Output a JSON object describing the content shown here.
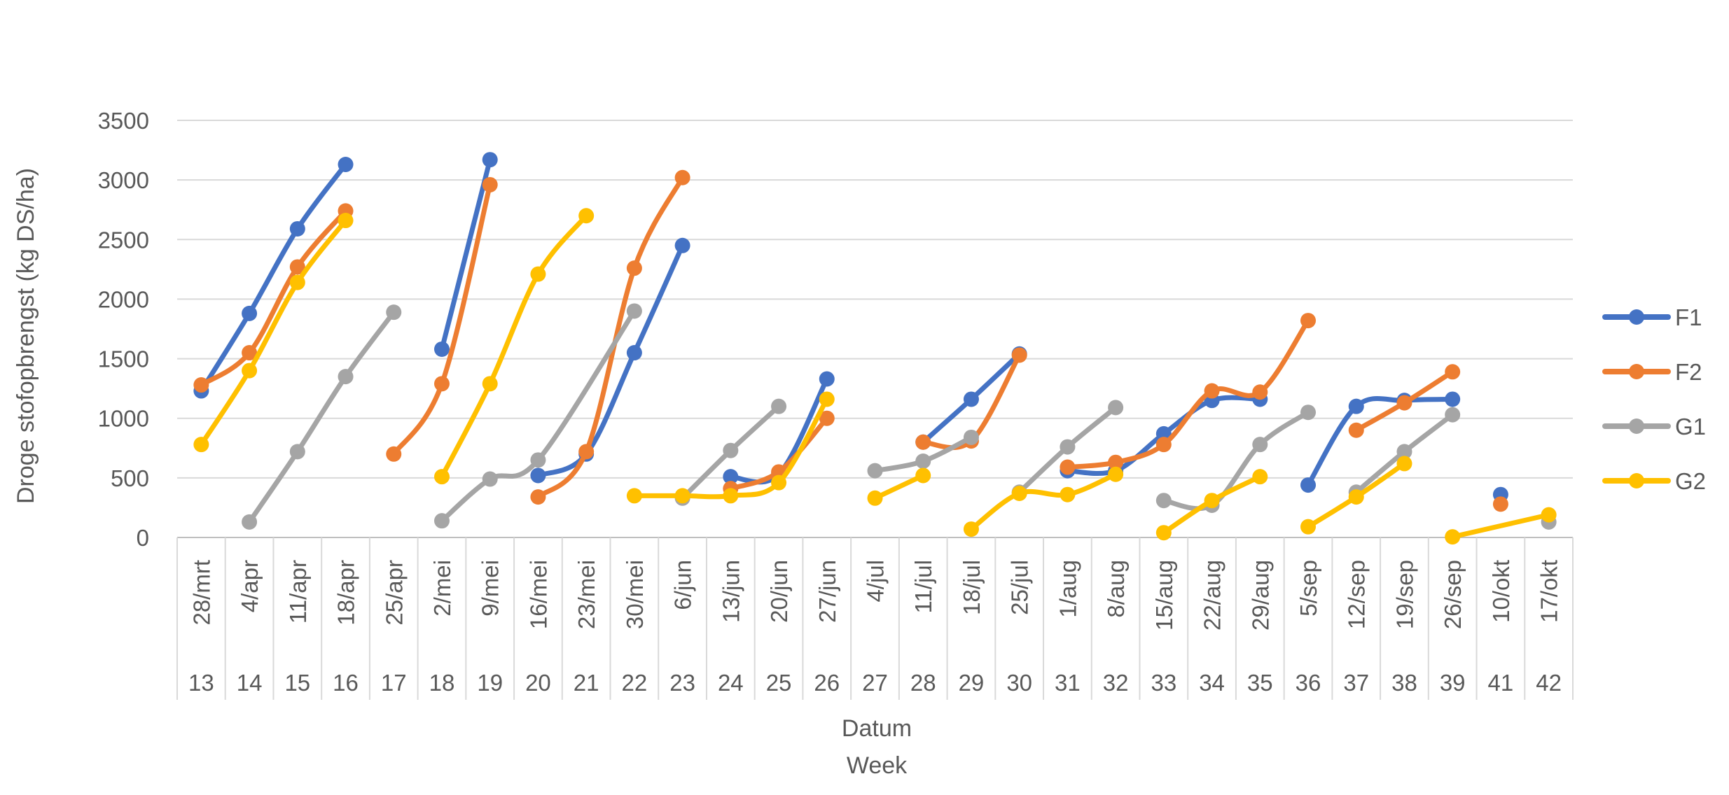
{
  "chart_data": {
    "type": "line",
    "title": "",
    "ylabel": "Droge stofopbrengst (kg DS/ha)",
    "xlabel": "Datum",
    "xlabel2": "Week",
    "ylim": [
      0,
      3500
    ],
    "yticks": [
      0,
      500,
      1000,
      1500,
      2000,
      2500,
      3000,
      3500
    ],
    "grid": true,
    "legend_position": "right",
    "categories": [
      "28/mrt",
      "4/apr",
      "11/apr",
      "18/apr",
      "25/apr",
      "2/mei",
      "9/mei",
      "16/mei",
      "23/mei",
      "30/mei",
      "6/jun",
      "13/jun",
      "20/jun",
      "27/jun",
      "4/jul",
      "11/jul",
      "18/jul",
      "25/jul",
      "1/aug",
      "8/aug",
      "15/aug",
      "22/aug",
      "29/aug",
      "5/sep",
      "12/sep",
      "19/sep",
      "26/sep",
      "10/okt",
      "17/okt"
    ],
    "weeks": [
      "13",
      "14",
      "15",
      "16",
      "17",
      "18",
      "19",
      "20",
      "21",
      "22",
      "23",
      "24",
      "25",
      "26",
      "27",
      "28",
      "29",
      "30",
      "31",
      "32",
      "33",
      "34",
      "35",
      "36",
      "37",
      "38",
      "39",
      "41",
      "42"
    ],
    "series": [
      {
        "name": "F1",
        "color": "#4472C4",
        "values": [
          1230,
          1880,
          2590,
          3130,
          null,
          1580,
          3170,
          520,
          700,
          1550,
          2450,
          510,
          530,
          1330,
          null,
          800,
          1160,
          1540,
          560,
          560,
          870,
          1150,
          1160,
          440,
          1100,
          1150,
          1160,
          360,
          null
        ],
        "segments": [
          [
            0,
            3
          ],
          [
            5,
            6
          ],
          [
            7,
            10
          ],
          [
            11,
            13
          ],
          [
            15,
            17
          ],
          [
            18,
            22
          ],
          [
            23,
            26
          ],
          [
            27,
            27
          ]
        ]
      },
      {
        "name": "F2",
        "color": "#ED7D31",
        "values": [
          1280,
          1550,
          2270,
          2740,
          700,
          1290,
          2960,
          340,
          720,
          2260,
          3020,
          410,
          550,
          1000,
          null,
          800,
          810,
          1530,
          590,
          630,
          780,
          1230,
          1220,
          1820,
          900,
          1130,
          1390,
          280,
          null
        ],
        "segments": [
          [
            0,
            3
          ],
          [
            4,
            6
          ],
          [
            7,
            10
          ],
          [
            11,
            13
          ],
          [
            15,
            17
          ],
          [
            18,
            23
          ],
          [
            24,
            26
          ],
          [
            27,
            27
          ]
        ]
      },
      {
        "name": "G1",
        "color": "#A5A5A5",
        "values": [
          null,
          130,
          720,
          1350,
          1890,
          140,
          490,
          650,
          null,
          1900,
          330,
          730,
          1100,
          null,
          560,
          640,
          840,
          380,
          760,
          1090,
          310,
          270,
          780,
          1050,
          380,
          720,
          1030,
          null,
          130
        ],
        "segments": [
          [
            1,
            4
          ],
          [
            5,
            9
          ],
          [
            10,
            12
          ],
          [
            14,
            16
          ],
          [
            17,
            19
          ],
          [
            20,
            23
          ],
          [
            24,
            26
          ],
          [
            28,
            28
          ]
        ]
      },
      {
        "name": "G2",
        "color": "#FFC000",
        "values": [
          780,
          1400,
          2140,
          2660,
          null,
          510,
          1290,
          2210,
          2700,
          350,
          350,
          350,
          460,
          1160,
          330,
          520,
          70,
          370,
          360,
          530,
          40,
          310,
          510,
          90,
          340,
          620,
          5,
          null,
          190
        ],
        "segments": [
          [
            0,
            3
          ],
          [
            5,
            8
          ],
          [
            9,
            13
          ],
          [
            14,
            15
          ],
          [
            16,
            19
          ],
          [
            20,
            22
          ],
          [
            23,
            25
          ],
          [
            26,
            28
          ]
        ]
      }
    ]
  }
}
